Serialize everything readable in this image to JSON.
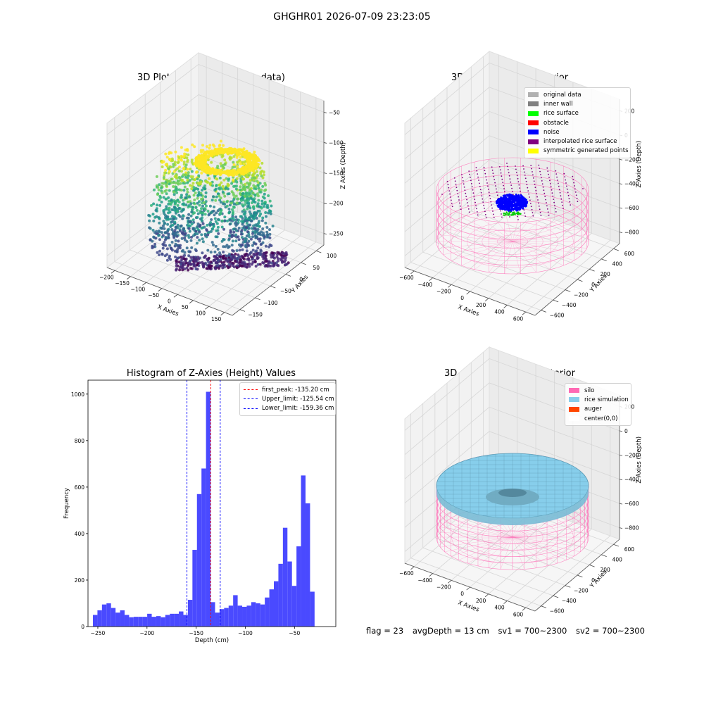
{
  "figure": {
    "title": "GHGHR01 2026-07-09 23:23:05",
    "footer": {
      "flag": "flag = 23",
      "avg_depth": "avgDepth = 13 cm",
      "sv1": "sv1 = 700~2300",
      "sv2": "sv2 = 700~2300"
    }
  },
  "chart_data": [
    {
      "type": "scatter",
      "title": "3D Plot of Silo Interior(row data)",
      "xlabel": "X Axies",
      "ylabel": "Y Axies",
      "zlabel": "Z Axies (Depth)",
      "x_ticks": [
        "−200",
        "−150",
        "−100",
        "−50",
        "0",
        "50",
        "100",
        "150"
      ],
      "y_ticks": [
        "−150",
        "−100",
        "−50",
        "0",
        "50",
        "100"
      ],
      "z_ticks": [
        "−50",
        "−100",
        "−150",
        "−200",
        "−250"
      ],
      "xlim": [
        -200,
        150
      ],
      "ylim": [
        -150,
        100
      ],
      "zlim": [
        -260,
        -15
      ],
      "colormap": "viridis"
    },
    {
      "type": "scatter",
      "title": "3D classify of Silo Interior",
      "xlabel": "X Axies",
      "ylabel": "Y Axies",
      "zlabel": "Z Axies (Depth)",
      "x_ticks": [
        "−600",
        "−400",
        "−200",
        "0",
        "200",
        "400",
        "600"
      ],
      "y_ticks": [
        "−600",
        "−400",
        "−200",
        "0",
        "200",
        "400",
        "600"
      ],
      "z_ticks": [
        "200",
        "0",
        "−200",
        "−400",
        "−600",
        "−800"
      ],
      "legend_position": "upper right",
      "legend": [
        {
          "label": "original data",
          "color": "#b0b0b0"
        },
        {
          "label": "inner wall",
          "color": "#808080"
        },
        {
          "label": "rice surface",
          "color": "#00ff00"
        },
        {
          "label": "obstacle",
          "color": "#ff0000"
        },
        {
          "label": "noise",
          "color": "#0000ff"
        },
        {
          "label": "interpolated rice surface",
          "color": "#800080"
        },
        {
          "label": "symmetric generated points",
          "color": "#ffff00"
        }
      ]
    },
    {
      "type": "bar",
      "title": "Histogram of Z-Axies (Height) Values",
      "xlabel": "Depth (cm)",
      "ylabel": "Frequency",
      "x_ticks": [
        -250,
        -200,
        -150,
        -100,
        -50
      ],
      "y_ticks": [
        0,
        200,
        400,
        600,
        800,
        1000
      ],
      "xlim": [
        -260,
        -8
      ],
      "ylim": [
        0,
        1060
      ],
      "bar_color": "#4a4aff",
      "bins": {
        "start": -255,
        "width": 4.6,
        "values": [
          50,
          70,
          95,
          100,
          80,
          60,
          70,
          50,
          40,
          42,
          42,
          42,
          55,
          42,
          45,
          40,
          50,
          55,
          55,
          65,
          50,
          115,
          330,
          570,
          680,
          1010,
          105,
          60,
          75,
          80,
          90,
          135,
          90,
          85,
          90,
          105,
          100,
          95,
          125,
          160,
          195,
          270,
          425,
          280,
          175,
          345,
          650,
          530,
          150
        ]
      },
      "lines": [
        {
          "label": "first_peak: -135.20 cm",
          "x": -135.2,
          "color": "#ff0000"
        },
        {
          "label": "Upper_limit: -125.54 cm",
          "x": -125.54,
          "color": "#0000ff"
        },
        {
          "label": "Lower_limit: -159.36 cm",
          "x": -159.36,
          "color": "#0000ff"
        }
      ],
      "legend_position": "upper right"
    },
    {
      "type": "area",
      "title": "3D simulation of Silo Interior",
      "xlabel": "X Axies",
      "ylabel": "Y Axies",
      "zlabel": "Z Axies (Depth)",
      "x_ticks": [
        "−600",
        "−400",
        "−200",
        "0",
        "200",
        "400",
        "600"
      ],
      "y_ticks": [
        "−600",
        "−400",
        "−200",
        "0",
        "200",
        "400",
        "600"
      ],
      "z_ticks": [
        "200",
        "0",
        "−200",
        "−400",
        "−600",
        "−800"
      ],
      "legend_position": "upper right",
      "legend": [
        {
          "label": "silo",
          "color": "#ff69b4"
        },
        {
          "label": "rice simulation",
          "color": "#87ceeb"
        },
        {
          "label": "auger",
          "color": "#ff4500"
        },
        {
          "label": "center(0,0)",
          "color": "#ffffff"
        }
      ]
    }
  ]
}
